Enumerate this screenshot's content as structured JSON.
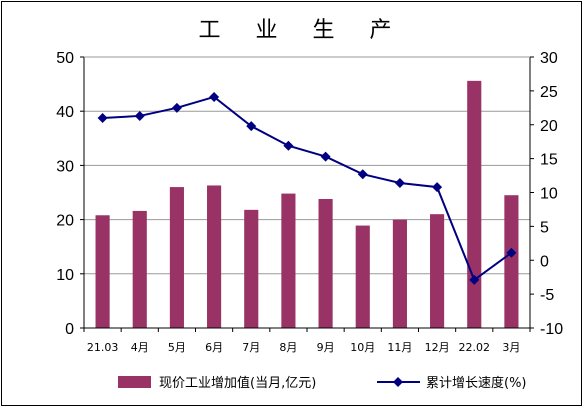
{
  "chart_data": {
    "type": "bar+line",
    "title": "工 业 生 产",
    "categories": [
      "21.03",
      "4月",
      "5月",
      "6月",
      "7月",
      "8月",
      "9月",
      "10月",
      "11月",
      "12月",
      "22.02",
      "3月"
    ],
    "series": [
      {
        "name": "现价工业增加值(当月,亿元)",
        "type": "bar",
        "axis": "left",
        "color": "#993366",
        "values": [
          20.8,
          21.6,
          26.0,
          26.3,
          21.8,
          24.8,
          23.8,
          18.9,
          20.0,
          21.0,
          45.6,
          24.5
        ]
      },
      {
        "name": "累计增长速度(%)",
        "type": "line",
        "axis": "right",
        "color": "#000080",
        "values": [
          21.0,
          21.3,
          22.5,
          24.1,
          19.8,
          16.9,
          15.3,
          12.7,
          11.4,
          10.8,
          -2.9,
          1.1
        ]
      }
    ],
    "y_left": {
      "min": 0,
      "max": 50,
      "ticks": [
        "0",
        "10",
        "20",
        "30",
        "40",
        "50"
      ]
    },
    "y_right": {
      "min": -10,
      "max": 30,
      "ticks": [
        "-10",
        "-5",
        "0",
        "5",
        "10",
        "15",
        "20",
        "25",
        "30"
      ]
    },
    "grid": true,
    "legend_position": "bottom"
  }
}
